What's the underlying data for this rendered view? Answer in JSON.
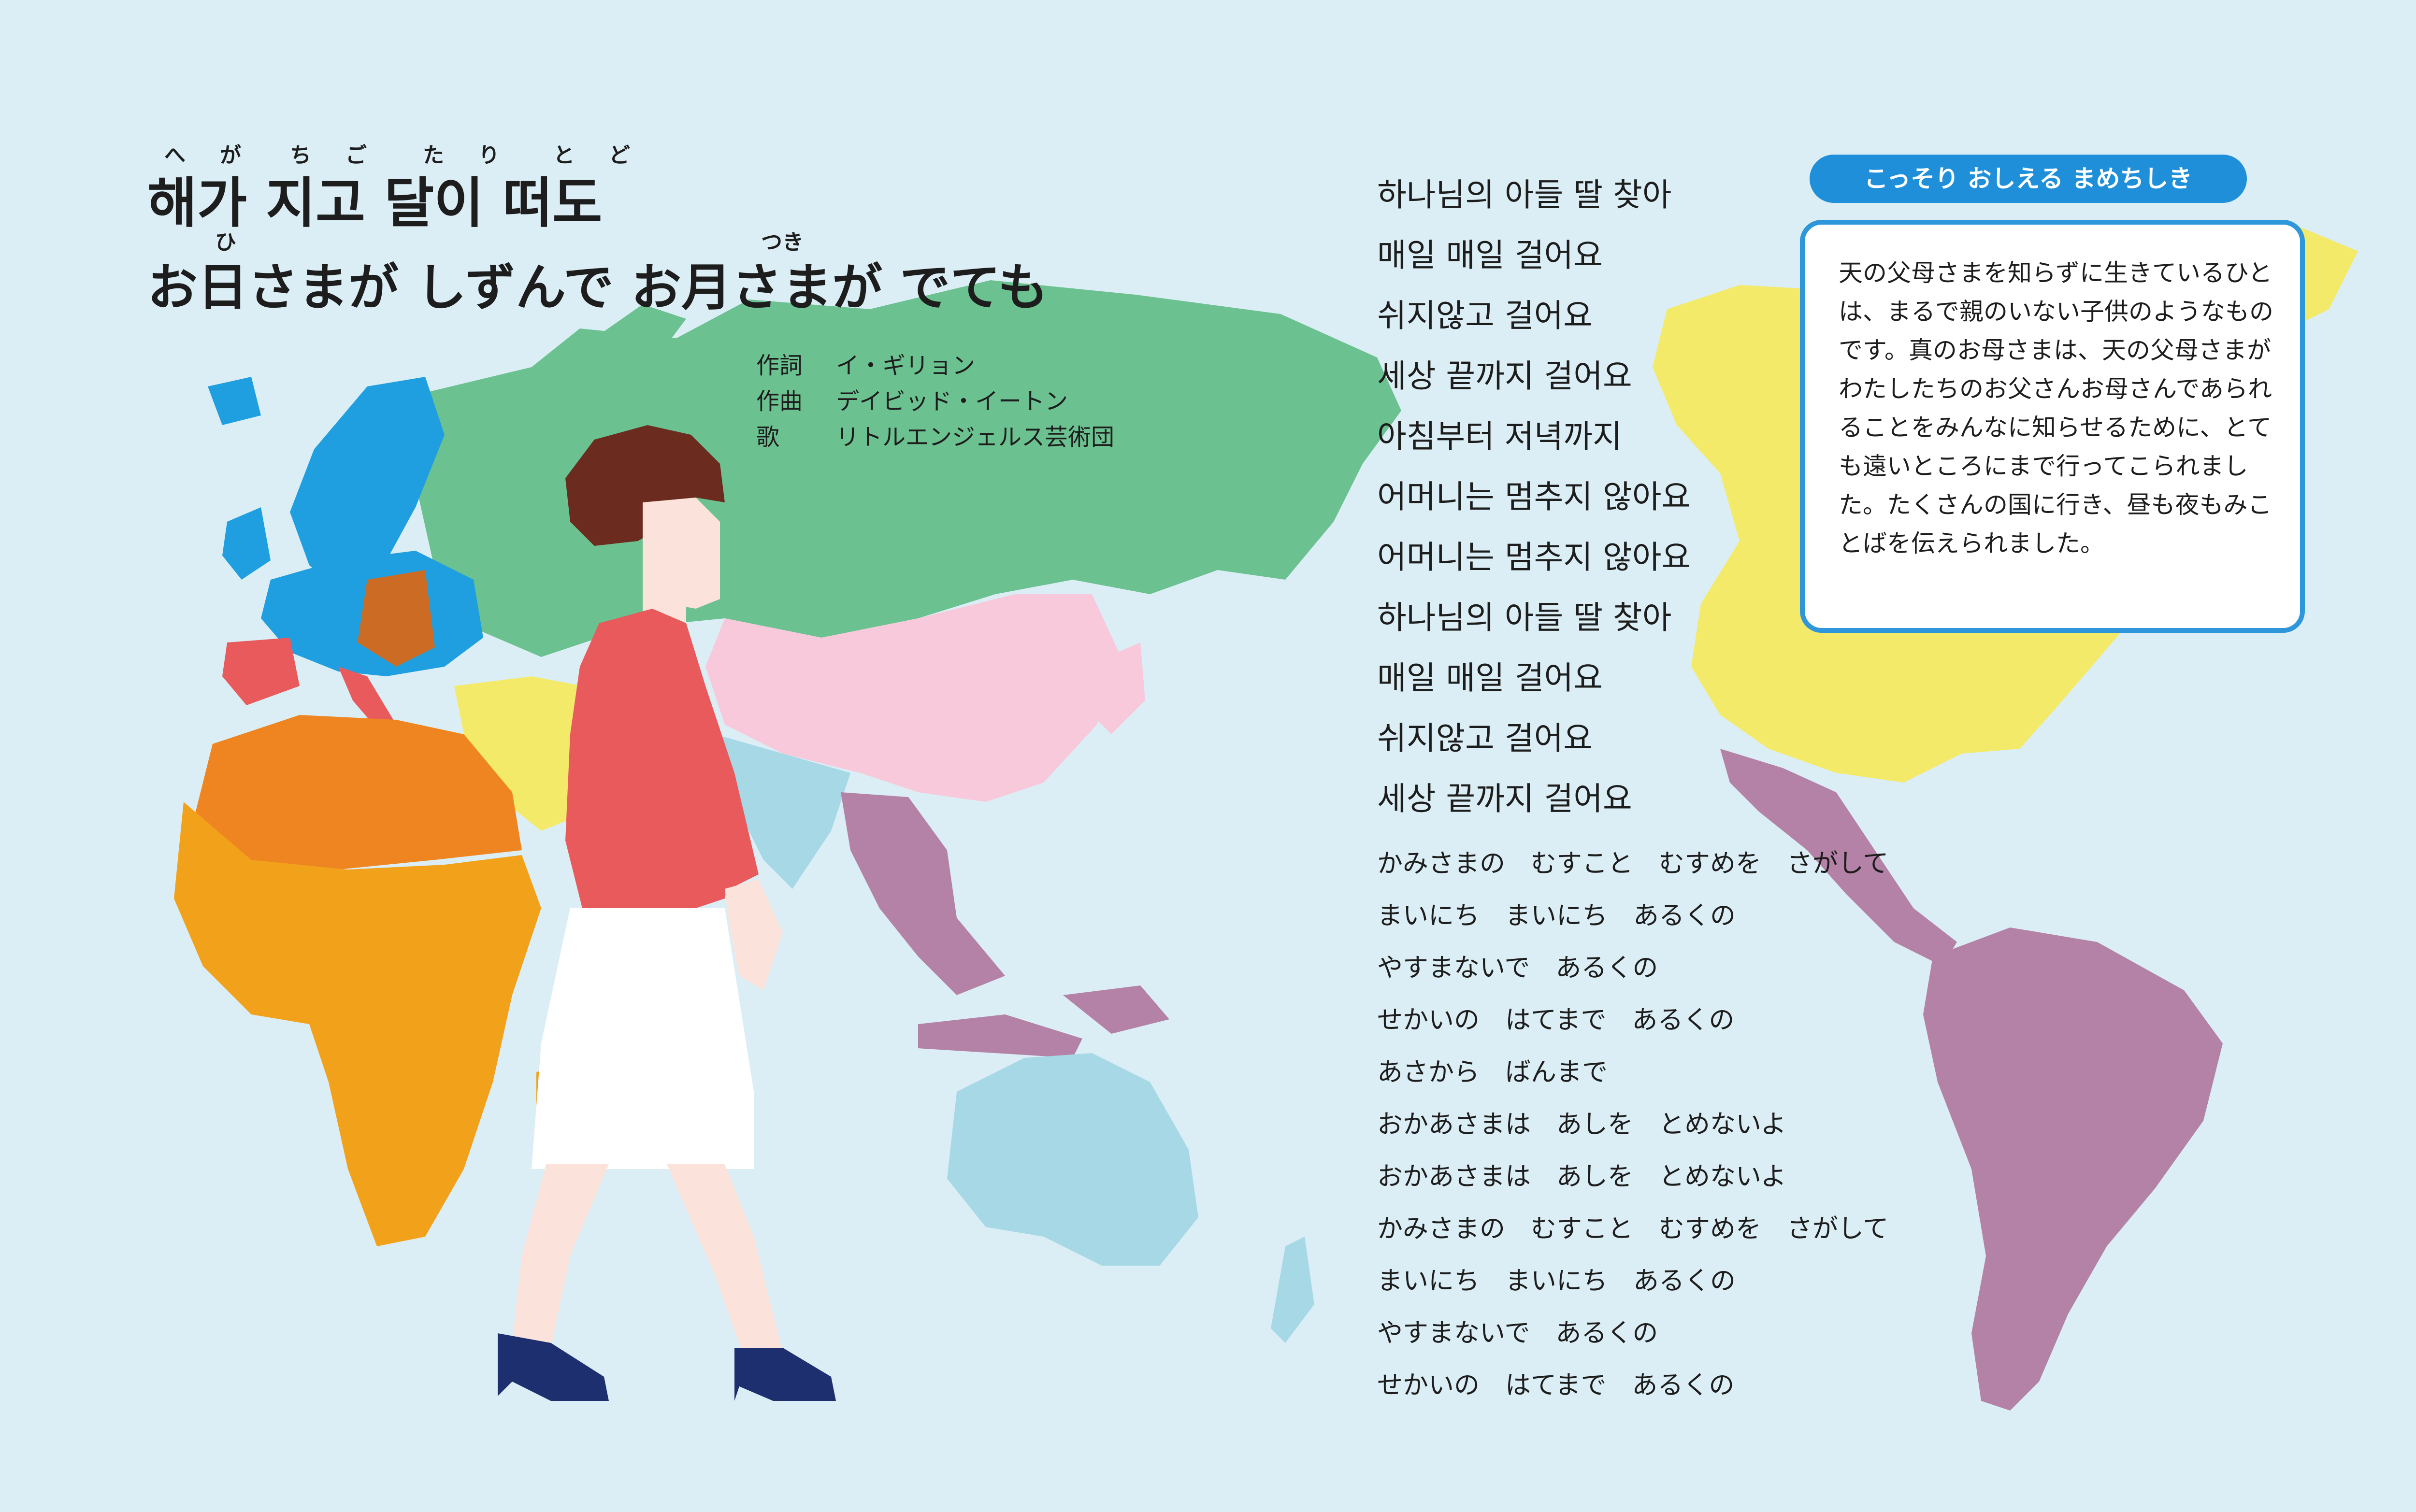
{
  "title": {
    "korean": "해가 지고 달이 떠도",
    "japanese": "お日さまが しずんで お月さまが でても",
    "korean_ruby": [
      "へ",
      "が",
      "ち",
      "ご",
      "た",
      "り",
      "と",
      "ど"
    ],
    "japanese_ruby": [
      "ひ",
      "つき"
    ]
  },
  "credits": [
    {
      "role": "作詞",
      "name": "イ・ギリョン"
    },
    {
      "role": "作曲",
      "name": "デイビッド・イートン"
    },
    {
      "role": "歌",
      "name": "リトルエンジェルス芸術団"
    }
  ],
  "lyrics_korean": [
    "하나님의 아들 딸 찾아",
    "매일 매일 걸어요",
    "쉬지않고 걸어요",
    "세상 끝까지 걸어요",
    "아침부터 저녁까지",
    "어머니는 멈추지 않아요",
    "어머니는 멈추지 않아요",
    "하나님의 아들 딸 찾아",
    "매일 매일 걸어요",
    "쉬지않고 걸어요",
    "세상 끝까지 걸어요"
  ],
  "lyrics_japanese": [
    "かみさまの　むすこと　むすめを　さがして",
    "まいにち　まいにち　あるくの",
    "やすまないで　あるくの",
    "せかいの　はてまで　あるくの",
    "あさから　ばんまで",
    "おかあさまは　あしを　とめないよ",
    "おかあさまは　あしを　とめないよ",
    "かみさまの　むすこと　むすめを　さがして",
    "まいにち　まいにち　あるくの",
    "やすまないで　あるくの",
    "せかいの　はてまで　あるくの"
  ],
  "tip": {
    "label": "こっそり おしえる まめちしき",
    "text": "天の父母さまを知らずに生きているひとは、まるで親のいない子供のようなものです。真のお母さまは、天の父母さまがわたしたちのお父さんお母さんであられることをみんなに知らせるために、とても遠いところにまで行ってこられました。たくさんの国に行き、昼も夜もみことばを伝えられました。"
  },
  "colors": {
    "background": "#dceef5",
    "europe_blue": "#1f9fe0",
    "russia_green": "#6cc190",
    "east_asia_pink": "#f7c9da",
    "africa_orange": "#f2a21a",
    "africa_north": "#ee8520",
    "americas_yellow": "#f3ea69",
    "south_america_purple": "#b382a6",
    "oceania_lightblue": "#a6d8e5",
    "accent_blue": "#1e8fd8",
    "jacket_red": "#e85a5b",
    "shoes_navy": "#1d2f6f"
  }
}
